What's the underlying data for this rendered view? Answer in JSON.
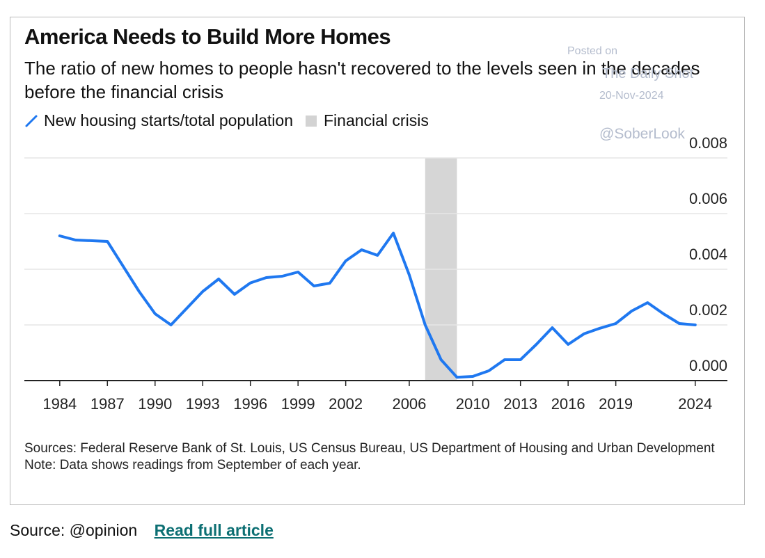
{
  "chart_data": {
    "type": "line",
    "title": "America Needs to Build More Homes",
    "subtitle": "The ratio of new homes to people hasn't recovered to the levels seen in the decades before the financial crisis",
    "legend": {
      "series_label": "New housing starts/total population",
      "shade_label": "Financial crisis"
    },
    "x_ticks": [
      "1984",
      "1987",
      "1990",
      "1993",
      "1996",
      "1999",
      "2002",
      "2006",
      "2010",
      "2013",
      "2016",
      "2019",
      "2024"
    ],
    "y_ticks": [
      "0.008",
      "0.006",
      "0.004",
      "0.002",
      "0.000"
    ],
    "ylim": [
      0,
      0.008
    ],
    "xlim": [
      1983,
      2025.5
    ],
    "y_axis_position": "right",
    "shaded_region": {
      "label": "Financial crisis",
      "start": 2007,
      "end": 2009
    },
    "series": [
      {
        "name": "New housing starts/total population",
        "color": "#1f78f0",
        "x": [
          1984,
          1985,
          1987,
          1989,
          1990,
          1991,
          1992,
          1993,
          1994,
          1995,
          1996,
          1997,
          1998,
          1999,
          2000,
          2001,
          2002,
          2003,
          2004,
          2005,
          2006,
          2007,
          2008,
          2009,
          2010,
          2011,
          2012,
          2013,
          2014,
          2015,
          2016,
          2017,
          2018,
          2019,
          2020,
          2021,
          2022,
          2023,
          2024
        ],
        "values": [
          0.0052,
          0.00505,
          0.005,
          0.0032,
          0.0024,
          0.002,
          0.0026,
          0.0032,
          0.00365,
          0.0031,
          0.00351,
          0.0037,
          0.00375,
          0.0039,
          0.0034,
          0.0035,
          0.0043,
          0.0047,
          0.0045,
          0.0053,
          0.0038,
          0.002,
          0.00075,
          0.00012,
          0.00015,
          0.00035,
          0.00075,
          0.00075,
          0.0013,
          0.0019,
          0.0013,
          0.00168,
          0.00188,
          0.00205,
          0.0025,
          0.0028,
          0.0024,
          0.00205,
          0.002
        ]
      }
    ]
  },
  "sources": {
    "line1": "Sources: Federal Reserve Bank of St. Louis, US Census Bureau, US Department of Housing and Urban Development",
    "line2": "Note: Data shows readings from September of each year."
  },
  "watermark": {
    "posted": "Posted on",
    "site": "The Daily Shot",
    "date": "20-Nov-2024",
    "handle": "@SoberLook"
  },
  "footer": {
    "source_text": "Source: @opinion",
    "link_text": "Read full article"
  }
}
